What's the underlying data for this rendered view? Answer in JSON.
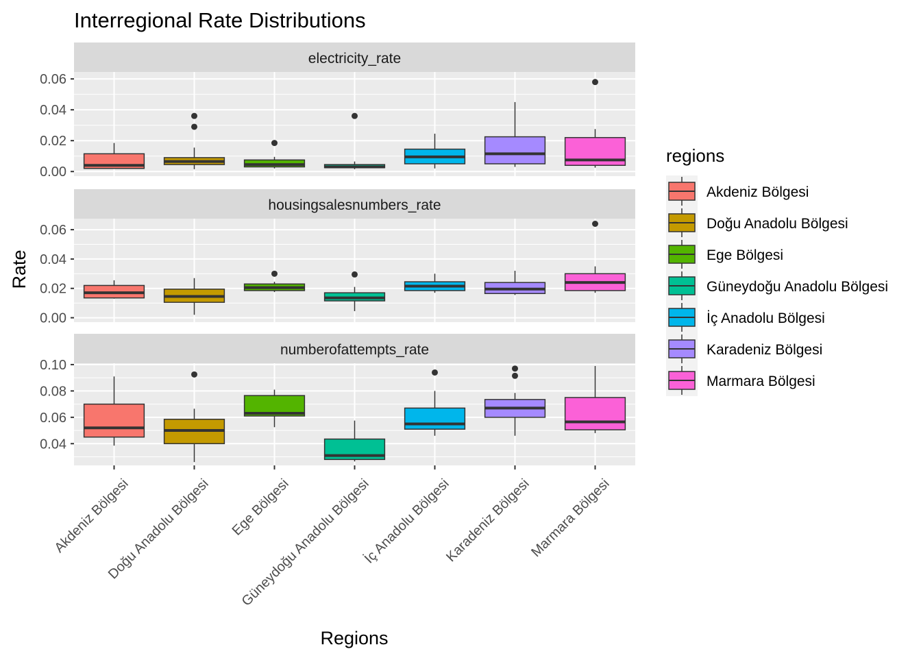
{
  "chart_data": {
    "type": "boxplot",
    "title": "Interregional Rate Distributions",
    "xlabel": "Regions",
    "ylabel": "Rate",
    "categories": [
      "Akdeniz Bölgesi",
      "Doğu Anadolu Bölgesi",
      "Ege Bölgesi",
      "Güneydoğu Anadolu Bölgesi",
      "İç Anadolu Bölgesi",
      "Karadeniz Bölgesi",
      "Marmara Bölgesi"
    ],
    "colors": [
      "#F8766D",
      "#C49A00",
      "#53B400",
      "#00C094",
      "#00B6EB",
      "#A58AFF",
      "#FB61D7"
    ],
    "legend": {
      "title": "regions",
      "position": "right"
    },
    "grid": true,
    "facets": [
      {
        "label": "electricity_rate",
        "ylim": [
          -0.003,
          0.0645
        ],
        "yticks": [
          0.0,
          0.02,
          0.04,
          0.06
        ],
        "ytick_labels": [
          "0.00",
          "0.02",
          "0.04",
          "0.06"
        ],
        "boxes": [
          {
            "whislo": 0.002,
            "q1": 0.002,
            "med": 0.004,
            "q3": 0.0115,
            "whishi": 0.0185,
            "outliers": []
          },
          {
            "whislo": 0.0015,
            "q1": 0.0045,
            "med": 0.0065,
            "q3": 0.009,
            "whishi": 0.0155,
            "outliers": [
              0.029,
              0.036
            ]
          },
          {
            "whislo": 0.002,
            "q1": 0.003,
            "med": 0.0045,
            "q3": 0.0075,
            "whishi": 0.0095,
            "outliers": [
              0.0185
            ]
          },
          {
            "whislo": 0.0015,
            "q1": 0.0025,
            "med": 0.003,
            "q3": 0.0045,
            "whishi": 0.0065,
            "outliers": [
              0.036
            ]
          },
          {
            "whislo": 0.002,
            "q1": 0.005,
            "med": 0.0095,
            "q3": 0.0145,
            "whishi": 0.0245,
            "outliers": []
          },
          {
            "whislo": 0.003,
            "q1": 0.005,
            "med": 0.0115,
            "q3": 0.0225,
            "whishi": 0.045,
            "outliers": []
          },
          {
            "whislo": 0.0025,
            "q1": 0.004,
            "med": 0.0075,
            "q3": 0.022,
            "whishi": 0.0275,
            "outliers": [
              0.058
            ]
          }
        ]
      },
      {
        "label": "housingsalesnumbers_rate",
        "ylim": [
          -0.003,
          0.0675
        ],
        "yticks": [
          0.0,
          0.02,
          0.04,
          0.06
        ],
        "ytick_labels": [
          "0.00",
          "0.02",
          "0.04",
          "0.06"
        ],
        "boxes": [
          {
            "whislo": 0.013,
            "q1": 0.0135,
            "med": 0.017,
            "q3": 0.022,
            "whishi": 0.0255,
            "outliers": []
          },
          {
            "whislo": 0.002,
            "q1": 0.0105,
            "med": 0.0145,
            "q3": 0.0195,
            "whishi": 0.027,
            "outliers": []
          },
          {
            "whislo": 0.0175,
            "q1": 0.0185,
            "med": 0.0205,
            "q3": 0.023,
            "whishi": 0.0245,
            "outliers": [
              0.03
            ]
          },
          {
            "whislo": 0.0045,
            "q1": 0.0115,
            "med": 0.0135,
            "q3": 0.017,
            "whishi": 0.021,
            "outliers": [
              0.0295
            ]
          },
          {
            "whislo": 0.017,
            "q1": 0.0185,
            "med": 0.0215,
            "q3": 0.0245,
            "whishi": 0.03,
            "outliers": []
          },
          {
            "whislo": 0.0155,
            "q1": 0.0165,
            "med": 0.0195,
            "q3": 0.024,
            "whishi": 0.032,
            "outliers": []
          },
          {
            "whislo": 0.017,
            "q1": 0.0185,
            "med": 0.024,
            "q3": 0.03,
            "whishi": 0.035,
            "outliers": [
              0.064
            ]
          }
        ]
      },
      {
        "label": "numberofattempts_rate",
        "ylim": [
          0.0235,
          0.101
        ],
        "yticks": [
          0.04,
          0.06,
          0.08,
          0.1
        ],
        "ytick_labels": [
          "0.04",
          "0.06",
          "0.08",
          "0.10"
        ],
        "boxes": [
          {
            "whislo": 0.0385,
            "q1": 0.045,
            "med": 0.052,
            "q3": 0.07,
            "whishi": 0.091,
            "outliers": []
          },
          {
            "whislo": 0.026,
            "q1": 0.04,
            "med": 0.05,
            "q3": 0.0585,
            "whishi": 0.0665,
            "outliers": [
              0.0925
            ]
          },
          {
            "whislo": 0.0525,
            "q1": 0.061,
            "med": 0.063,
            "q3": 0.0765,
            "whishi": 0.081,
            "outliers": []
          },
          {
            "whislo": 0.0265,
            "q1": 0.028,
            "med": 0.031,
            "q3": 0.0435,
            "whishi": 0.0575,
            "outliers": []
          },
          {
            "whislo": 0.046,
            "q1": 0.051,
            "med": 0.055,
            "q3": 0.067,
            "whishi": 0.08,
            "outliers": [
              0.094
            ]
          },
          {
            "whislo": 0.046,
            "q1": 0.06,
            "med": 0.067,
            "q3": 0.0735,
            "whishi": 0.0785,
            "outliers": [
              0.0915,
              0.097
            ]
          },
          {
            "whislo": 0.048,
            "q1": 0.0505,
            "med": 0.0565,
            "q3": 0.075,
            "whishi": 0.099,
            "outliers": []
          }
        ]
      }
    ]
  }
}
